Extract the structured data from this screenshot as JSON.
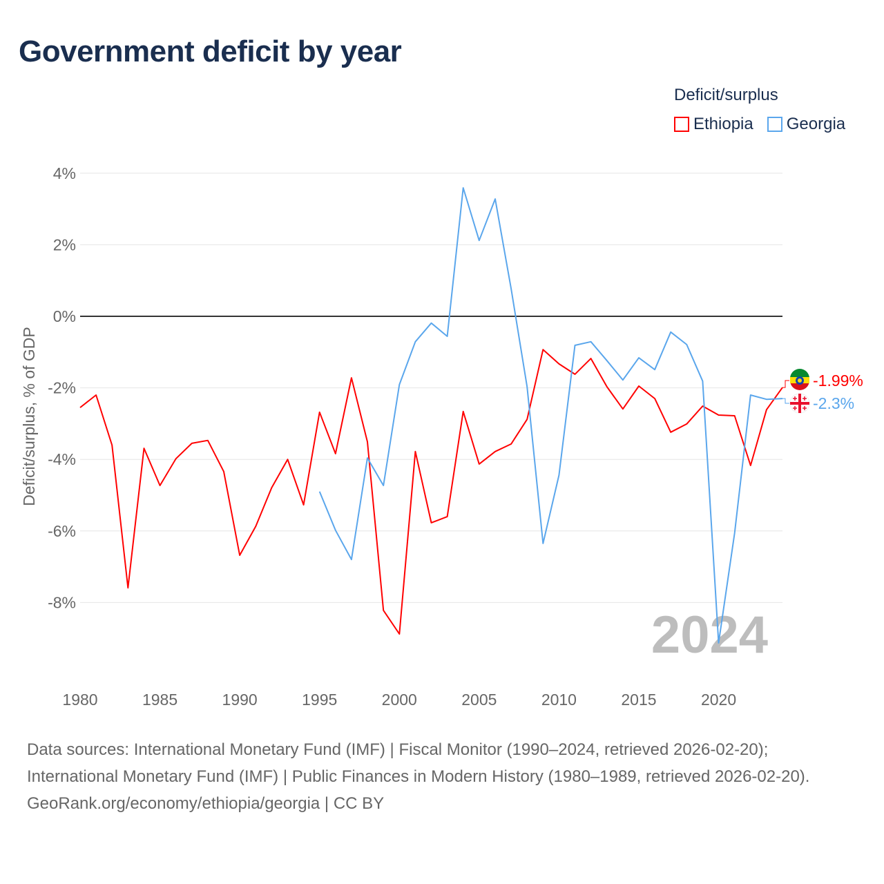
{
  "title": "Government deficit by year",
  "legend": {
    "title": "Deficit/surplus",
    "items": [
      {
        "label": "Ethiopia",
        "color": "#ff0000"
      },
      {
        "label": "Georgia",
        "color": "#5aa6ec"
      }
    ]
  },
  "watermark_year": "2024",
  "footer": {
    "sources": "Data sources: International Monetary Fund (IMF) | Fiscal Monitor (1990–2024, retrieved 2026-02-20); International Monetary Fund (IMF) | Public Finances in Modern History (1980–1989, retrieved 2026-02-20).",
    "credit": "GeoRank.org/economy/ethiopia/georgia | CC BY"
  },
  "chart_data": {
    "type": "line",
    "title": "Government deficit by year",
    "xlabel": "",
    "ylabel": "Deficit/surplus, % of GDP",
    "xlim": [
      1980,
      2024
    ],
    "ylim": [
      -10.2,
      4.2
    ],
    "x_ticks": [
      1980,
      1985,
      1990,
      1995,
      2000,
      2005,
      2010,
      2015,
      2020
    ],
    "x_tick_labels": [
      "1980",
      "1985",
      "1990",
      "1995",
      "2000",
      "2005",
      "2010",
      "2015",
      "2020"
    ],
    "y_ticks": [
      4,
      2,
      0,
      -2,
      -4,
      -6,
      -8
    ],
    "y_tick_labels": [
      "4%",
      "2%",
      "0%",
      "-2%",
      "-4%",
      "-6%",
      "-8%"
    ],
    "grid": true,
    "legend_position": "top-right",
    "series": [
      {
        "name": "Ethiopia",
        "color": "#ff0000",
        "end_label": "-1.99%",
        "x": [
          1980,
          1981,
          1982,
          1983,
          1984,
          1985,
          1986,
          1987,
          1988,
          1989,
          1990,
          1991,
          1992,
          1993,
          1994,
          1995,
          1996,
          1997,
          1998,
          1999,
          2000,
          2001,
          2002,
          2003,
          2004,
          2005,
          2006,
          2007,
          2008,
          2009,
          2010,
          2011,
          2012,
          2013,
          2014,
          2015,
          2016,
          2017,
          2018,
          2019,
          2020,
          2021,
          2022,
          2023,
          2024
        ],
        "values": [
          -2.55,
          -2.2,
          -3.6,
          -7.59,
          -3.69,
          -4.73,
          -3.98,
          -3.55,
          -3.47,
          -4.34,
          -6.68,
          -5.87,
          -4.79,
          -4.0,
          -5.27,
          -2.68,
          -3.84,
          -1.72,
          -3.51,
          -8.22,
          -8.88,
          -3.78,
          -5.77,
          -5.6,
          -2.66,
          -4.13,
          -3.78,
          -3.57,
          -2.88,
          -0.93,
          -1.33,
          -1.62,
          -1.18,
          -1.97,
          -2.59,
          -1.95,
          -2.3,
          -3.24,
          -3.01,
          -2.51,
          -2.76,
          -2.78,
          -4.17,
          -2.61,
          -1.99
        ]
      },
      {
        "name": "Georgia",
        "color": "#5aa6ec",
        "end_label": "-2.3%",
        "x": [
          1995,
          1996,
          1997,
          1998,
          1999,
          2000,
          2001,
          2002,
          2003,
          2004,
          2005,
          2006,
          2007,
          2008,
          2009,
          2010,
          2011,
          2012,
          2013,
          2014,
          2015,
          2016,
          2017,
          2018,
          2019,
          2020,
          2021,
          2022,
          2023,
          2024
        ],
        "values": [
          -4.9,
          -5.98,
          -6.8,
          -3.96,
          -4.73,
          -1.91,
          -0.71,
          -0.19,
          -0.56,
          3.59,
          2.12,
          3.28,
          0.77,
          -1.97,
          -6.35,
          -4.44,
          -0.81,
          -0.71,
          -1.24,
          -1.78,
          -1.16,
          -1.49,
          -0.44,
          -0.79,
          -1.81,
          -9.13,
          -6.06,
          -2.2,
          -2.32,
          -2.3
        ]
      }
    ]
  }
}
